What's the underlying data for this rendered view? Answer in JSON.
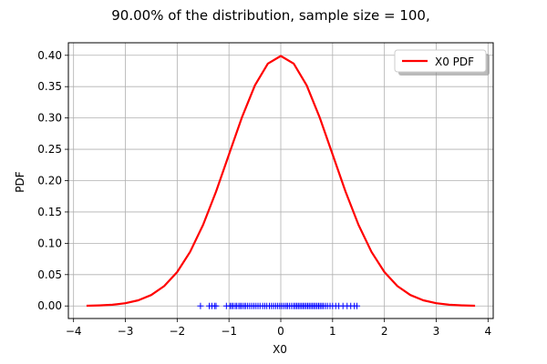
{
  "chart_data": {
    "type": "line",
    "title": "90.00% of the distribution, sample size = 100,",
    "xlabel": "X0",
    "ylabel": "PDF",
    "xlim": [
      -4.1,
      4.1
    ],
    "ylim": [
      -0.02,
      0.42
    ],
    "xticks": [
      -4,
      -3,
      -2,
      -1,
      0,
      1,
      2,
      3,
      4
    ],
    "xtick_labels": [
      "−4",
      "−3",
      "−2",
      "−1",
      "0",
      "1",
      "2",
      "3",
      "4"
    ],
    "yticks": [
      0.0,
      0.05,
      0.1,
      0.15,
      0.2,
      0.25,
      0.3,
      0.35,
      0.4
    ],
    "ytick_labels": [
      "0.00",
      "0.05",
      "0.10",
      "0.15",
      "0.20",
      "0.25",
      "0.30",
      "0.35",
      "0.40"
    ],
    "grid": true,
    "legend_position": "top-right",
    "series": [
      {
        "name": "X0 PDF",
        "color": "#ff0000",
        "x": [
          -3.75,
          -3.5,
          -3.25,
          -3.0,
          -2.75,
          -2.5,
          -2.25,
          -2.0,
          -1.75,
          -1.5,
          -1.25,
          -1.0,
          -0.75,
          -0.5,
          -0.25,
          0.0,
          0.25,
          0.5,
          0.75,
          1.0,
          1.25,
          1.5,
          1.75,
          2.0,
          2.25,
          2.5,
          2.75,
          3.0,
          3.25,
          3.5,
          3.75
        ],
        "y": [
          0.0004,
          0.0009,
          0.002,
          0.0044,
          0.0091,
          0.0175,
          0.0317,
          0.054,
          0.0863,
          0.1295,
          0.1826,
          0.242,
          0.3011,
          0.3521,
          0.3867,
          0.3989,
          0.3867,
          0.3521,
          0.3011,
          0.242,
          0.1826,
          0.1295,
          0.0863,
          0.054,
          0.0317,
          0.0175,
          0.0091,
          0.0044,
          0.002,
          0.0009,
          0.0004
        ]
      },
      {
        "name": "",
        "type": "scatter",
        "marker": "+",
        "color": "#0000ff",
        "x": [
          -1.55,
          -1.38,
          -1.33,
          -1.28,
          -1.25,
          -1.05,
          -0.98,
          -0.95,
          -0.92,
          -0.88,
          -0.85,
          -0.81,
          -0.78,
          -0.75,
          -0.71,
          -0.68,
          -0.64,
          -0.6,
          -0.56,
          -0.52,
          -0.48,
          -0.44,
          -0.4,
          -0.35,
          -0.31,
          -0.27,
          -0.22,
          -0.18,
          -0.14,
          -0.1,
          -0.06,
          -0.02,
          0.02,
          0.06,
          0.1,
          0.13,
          0.17,
          0.21,
          0.25,
          0.28,
          0.31,
          0.34,
          0.37,
          0.4,
          0.43,
          0.46,
          0.49,
          0.52,
          0.55,
          0.58,
          0.61,
          0.64,
          0.67,
          0.7,
          0.73,
          0.76,
          0.79,
          0.82,
          0.86,
          0.9,
          0.95,
          1.0,
          1.06,
          1.12,
          1.2,
          1.28,
          1.35,
          1.42,
          1.47
        ],
        "y": [
          0,
          0,
          0,
          0,
          0,
          0,
          0,
          0,
          0,
          0,
          0,
          0,
          0,
          0,
          0,
          0,
          0,
          0,
          0,
          0,
          0,
          0,
          0,
          0,
          0,
          0,
          0,
          0,
          0,
          0,
          0,
          0,
          0,
          0,
          0,
          0,
          0,
          0,
          0,
          0,
          0,
          0,
          0,
          0,
          0,
          0,
          0,
          0,
          0,
          0,
          0,
          0,
          0,
          0,
          0,
          0,
          0,
          0,
          0,
          0,
          0,
          0,
          0,
          0,
          0,
          0,
          0,
          0,
          0
        ]
      }
    ]
  }
}
